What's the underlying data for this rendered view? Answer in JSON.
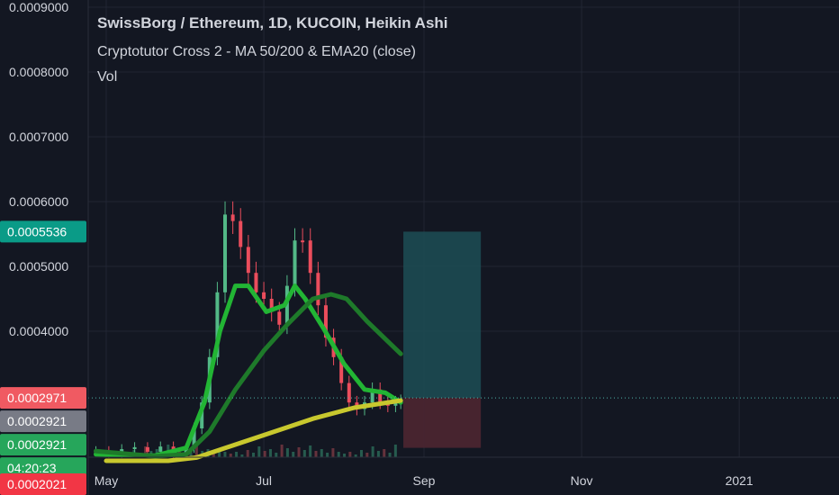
{
  "header": {
    "title": "SwissBorg / Ethereum, 1D, KUCOIN, Heikin Ashi",
    "indicator": "Cryptotutor Cross 2 - MA 50/200 & EMA20 (close)",
    "volume_label": "Vol"
  },
  "chart_data": {
    "type": "candlestick",
    "style": "Heikin Ashi",
    "symbol": "SwissBorg / Ethereum",
    "interval": "1D",
    "exchange": "KUCOIN",
    "x_ticks": [
      "May",
      "Jul",
      "Sep",
      "Nov",
      "2021"
    ],
    "y_ticks": [
      "0.0009000",
      "0.0008000",
      "0.0007000",
      "0.0006000",
      "0.0005000",
      "0.0004000"
    ],
    "y_range": [
      0.0002,
      0.0009
    ],
    "grid": true,
    "price_badges": [
      {
        "label": "0.0005536",
        "value": 0.0005536,
        "color": "#0a9b87"
      },
      {
        "label": "0.0002971",
        "value": 0.0002971,
        "color": "#f05a62"
      },
      {
        "label": "0.0002921",
        "value": 0.0002921,
        "color": "#787b86"
      },
      {
        "label": "0.0002921",
        "value": 0.0002921,
        "color": "#26a65b"
      },
      {
        "label": "04:20:23",
        "value": null,
        "color": "#26a65b"
      },
      {
        "label": "0.0002021",
        "value": 0.0002021,
        "color": "#f23645"
      }
    ],
    "candles": {
      "dates": [
        "2020-04-27",
        "2020-05-02",
        "2020-05-07",
        "2020-05-12",
        "2020-05-17",
        "2020-05-22",
        "2020-05-27",
        "2020-06-01",
        "2020-06-04",
        "2020-06-07",
        "2020-06-10",
        "2020-06-13",
        "2020-06-16",
        "2020-06-19",
        "2020-06-22",
        "2020-06-25",
        "2020-06-28",
        "2020-07-01",
        "2020-07-04",
        "2020-07-07",
        "2020-07-10",
        "2020-07-13",
        "2020-07-16",
        "2020-07-19",
        "2020-07-22",
        "2020-07-25",
        "2020-07-28",
        "2020-07-31",
        "2020-08-03",
        "2020-08-06",
        "2020-08-09",
        "2020-08-12",
        "2020-08-15",
        "2020-08-18",
        "2020-08-21",
        "2020-08-23"
      ],
      "close": [
        0.000215,
        0.000212,
        0.000218,
        0.000221,
        0.000214,
        0.000222,
        0.00021,
        0.00022,
        0.00025,
        0.00029,
        0.00036,
        0.00046,
        0.00058,
        0.00057,
        0.00053,
        0.00049,
        0.00046,
        0.00045,
        0.00043,
        0.00041,
        0.00047,
        0.00054,
        0.00054,
        0.00049,
        0.00044,
        0.00039,
        0.00036,
        0.00032,
        0.00029,
        0.00028,
        0.00029,
        0.00031,
        0.00029,
        0.000285,
        0.00029,
        0.000292
      ],
      "up": [
        true,
        false,
        true,
        true,
        false,
        true,
        false,
        true,
        true,
        true,
        true,
        true,
        true,
        false,
        false,
        false,
        false,
        false,
        false,
        false,
        true,
        true,
        false,
        false,
        false,
        false,
        false,
        false,
        false,
        false,
        true,
        true,
        false,
        false,
        true,
        true
      ]
    },
    "series": [
      {
        "name": "EMA20",
        "color": "#22b534",
        "dates": [
          "2020-04-27",
          "2020-05-20",
          "2020-06-01",
          "2020-06-08",
          "2020-06-14",
          "2020-06-20",
          "2020-06-25",
          "2020-07-02",
          "2020-07-09",
          "2020-07-13",
          "2020-07-17",
          "2020-07-24",
          "2020-08-01",
          "2020-08-09",
          "2020-08-17",
          "2020-08-23"
        ],
        "values": [
          0.00021,
          0.000208,
          0.00022,
          0.00029,
          0.0004,
          0.00047,
          0.00047,
          0.00043,
          0.00044,
          0.00047,
          0.00045,
          0.000405,
          0.00035,
          0.00031,
          0.000305,
          0.00029
        ]
      },
      {
        "name": "MA50",
        "color": "#1e7a2a",
        "dates": [
          "2020-04-27",
          "2020-05-20",
          "2020-06-01",
          "2020-06-10",
          "2020-06-20",
          "2020-07-01",
          "2020-07-10",
          "2020-07-20",
          "2020-07-27",
          "2020-08-02",
          "2020-08-10",
          "2020-08-23"
        ],
        "values": [
          0.000215,
          0.000207,
          0.00021,
          0.000245,
          0.00031,
          0.00037,
          0.00041,
          0.00045,
          0.000457,
          0.00045,
          0.000415,
          0.000365
        ]
      },
      {
        "name": "MA200",
        "color": "#c8c82e",
        "dates": [
          "2020-05-01",
          "2020-05-25",
          "2020-06-05",
          "2020-06-20",
          "2020-07-05",
          "2020-07-20",
          "2020-08-05",
          "2020-08-23"
        ],
        "values": [
          0.0002,
          0.0002,
          0.000205,
          0.000225,
          0.000245,
          0.000265,
          0.000282,
          0.000293
        ]
      }
    ],
    "position": {
      "entry": 0.0002971,
      "target": 0.0005536,
      "stop": 0.00022,
      "start_date": "2020-08-24",
      "end_date": "2020-09-23"
    }
  }
}
